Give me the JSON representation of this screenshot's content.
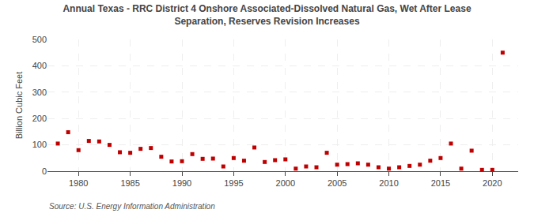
{
  "chart_data": {
    "type": "scatter",
    "title": "Annual Texas - RRC District 4 Onshore Associated-Dissolved Natural Gas, Wet After Lease\nSeparation, Reserves Revision Increases",
    "ylabel": "Billion Cubic Feet",
    "annotations": [
      "Source: U.S. Energy Information Administration"
    ],
    "x": [
      1978,
      1979,
      1980,
      1981,
      1982,
      1983,
      1984,
      1985,
      1986,
      1987,
      1988,
      1989,
      1990,
      1991,
      1992,
      1993,
      1994,
      1995,
      1996,
      1997,
      1998,
      1999,
      2000,
      2001,
      2002,
      2003,
      2004,
      2005,
      2006,
      2007,
      2008,
      2009,
      2010,
      2011,
      2012,
      2013,
      2014,
      2015,
      2016,
      2017,
      2018,
      2019,
      2020,
      2021
    ],
    "values": [
      105,
      148,
      80,
      115,
      113,
      100,
      72,
      70,
      85,
      88,
      55,
      37,
      38,
      65,
      47,
      48,
      18,
      50,
      40,
      90,
      35,
      42,
      45,
      10,
      18,
      15,
      70,
      25,
      27,
      30,
      25,
      15,
      10,
      15,
      20,
      25,
      40,
      50,
      105,
      10,
      78,
      5,
      5,
      450
    ],
    "color": "#c00000",
    "marker": "square",
    "xlim": [
      1977,
      2022.5
    ],
    "xticks": [
      1980,
      1985,
      1990,
      1995,
      2000,
      2005,
      2010,
      2015,
      2020
    ],
    "ylim": [
      0,
      500
    ],
    "yticks": [
      0,
      100,
      200,
      300,
      400,
      500
    ],
    "grid": true
  }
}
